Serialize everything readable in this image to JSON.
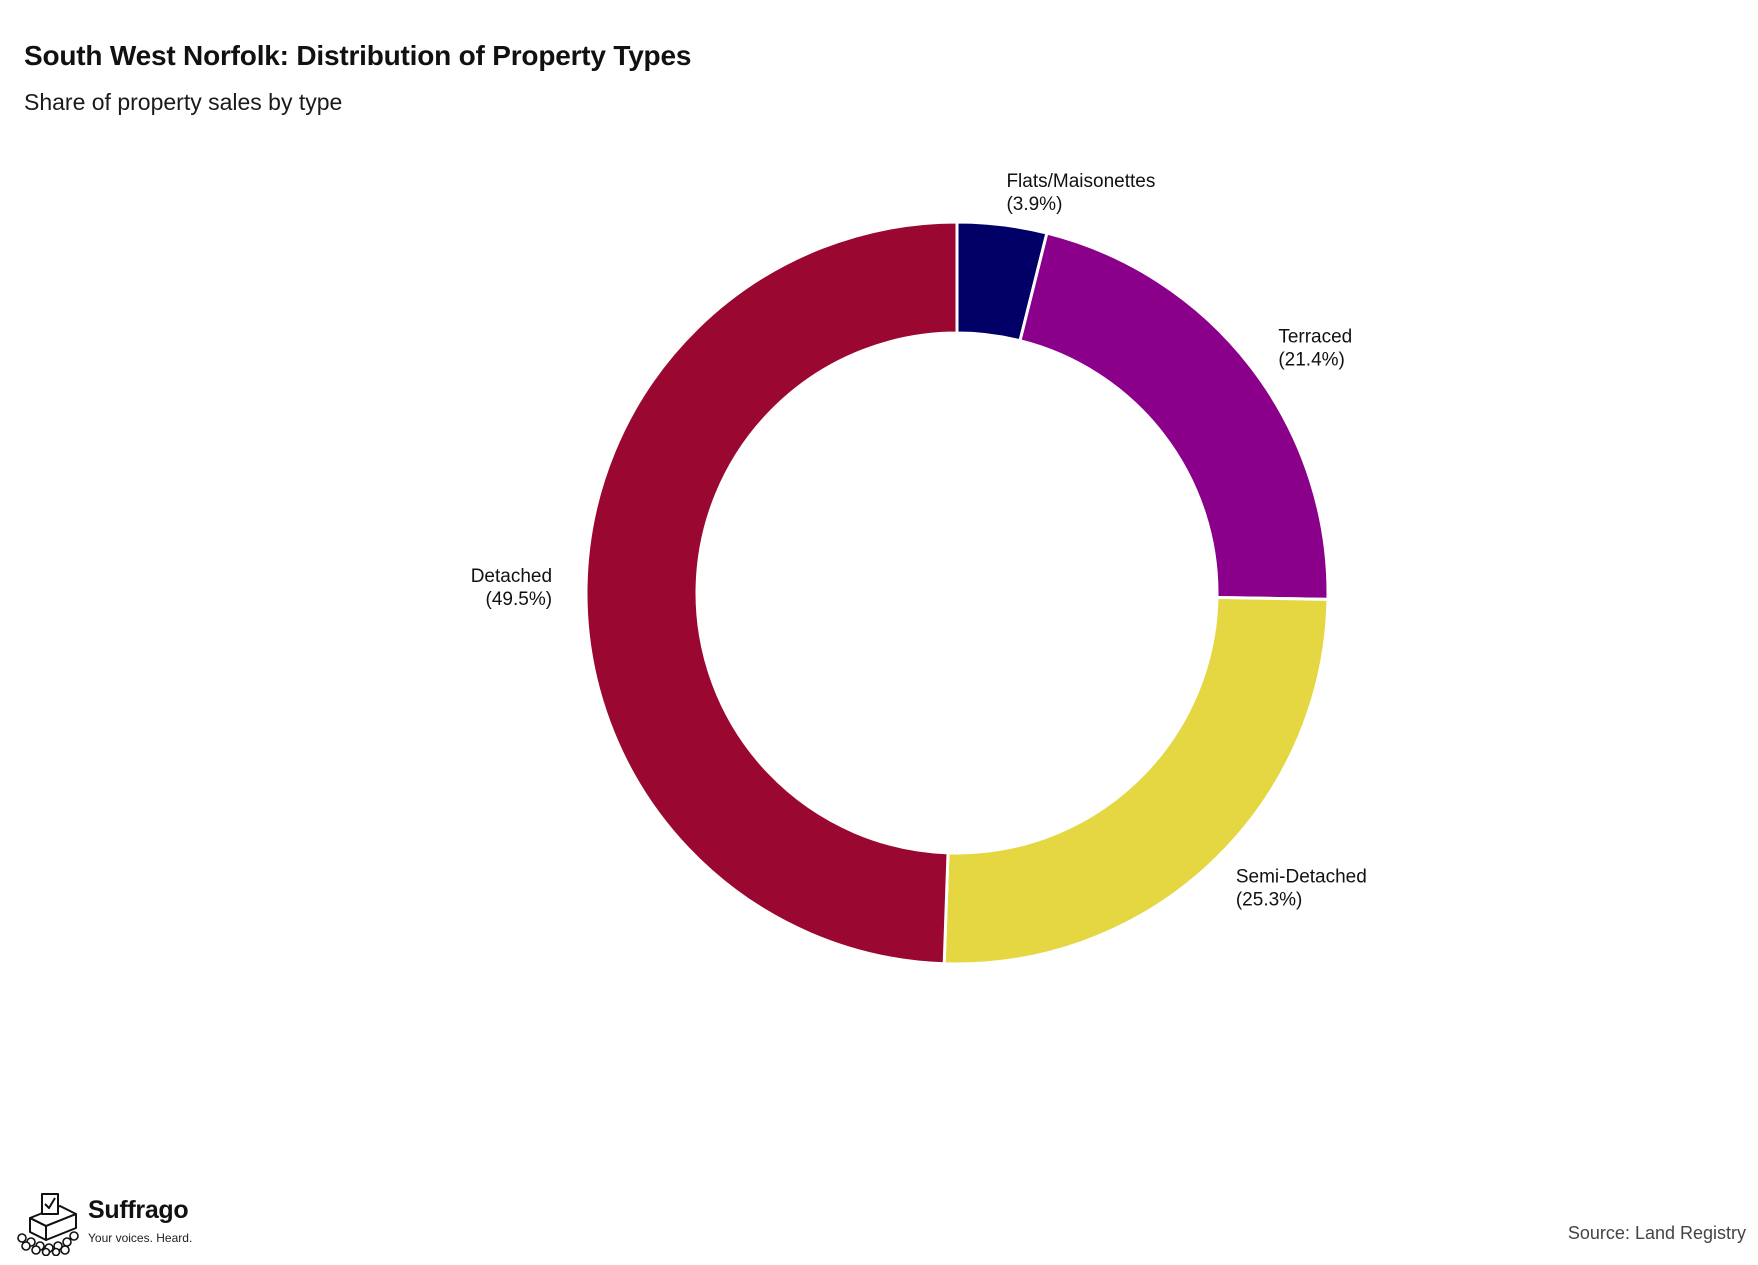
{
  "header": {
    "title": "South West Norfolk: Distribution of Property Types",
    "subtitle": "Share of property sales by type"
  },
  "chart_data": {
    "type": "pie",
    "variant": "donut",
    "title": "South West Norfolk: Distribution of Property Types",
    "subtitle": "Share of property sales by type",
    "start": "top",
    "direction": "clockwise",
    "slices": [
      {
        "label": "Flats/Maisonettes",
        "value": 3.9,
        "display": "(3.9%)",
        "color": "#000066"
      },
      {
        "label": "Terraced",
        "value": 21.4,
        "display": "(21.4%)",
        "color": "#8b008b"
      },
      {
        "label": "Semi-Detached",
        "value": 25.3,
        "display": "(25.3%)",
        "color": "#e4d742"
      },
      {
        "label": "Detached",
        "value": 49.5,
        "display": "(49.5%)",
        "color": "#9a0731"
      }
    ]
  },
  "footer": {
    "brand_name": "Suffrago",
    "brand_tagline": "Your voices. Heard.",
    "source": "Source: Land Registry"
  }
}
